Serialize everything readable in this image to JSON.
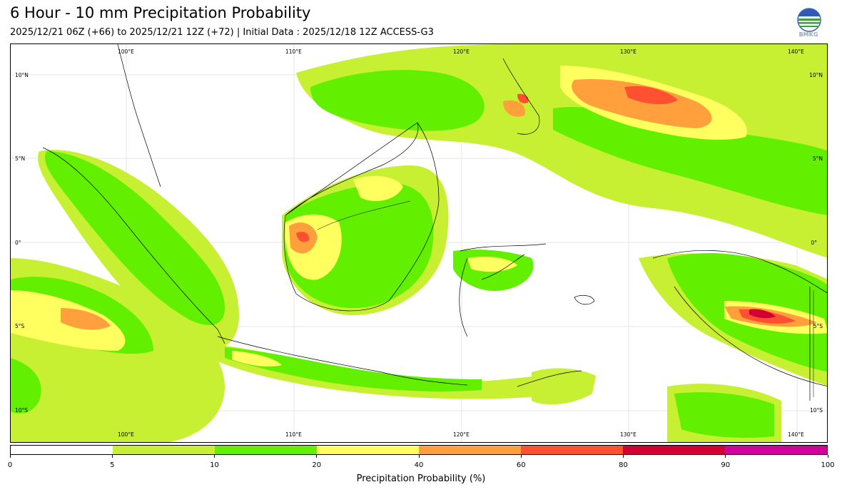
{
  "title": "6 Hour - 10 mm Precipitation Probability",
  "subtitle": "2025/12/21 06Z (+66) to 2025/12/21 12Z (+72) | Initial Data : 2025/12/18 12Z ACCESS-G3",
  "logo_text": "BMKG",
  "map": {
    "lon_labels_top": [
      "100°E",
      "110°E",
      "120°E",
      "130°E",
      "140°E"
    ],
    "lon_labels_bottom": [
      "100°E",
      "110°E",
      "120°E",
      "130°E",
      "140°E"
    ],
    "lat_labels_left": [
      "10°N",
      "5°N",
      "0°",
      "5°S",
      "10°S"
    ],
    "lat_labels_right": [
      "10°N",
      "5°N",
      "0°",
      "5°S",
      "10°S"
    ]
  },
  "colorbar": {
    "label": "Precipitation Probability (%)",
    "ticks": [
      "0",
      "5",
      "10",
      "20",
      "40",
      "60",
      "80",
      "90",
      "100"
    ],
    "colors": [
      "#ffffff",
      "#c7f032",
      "#62f000",
      "#ffff60",
      "#ffa03c",
      "#ff5032",
      "#d20032",
      "#d2009b"
    ]
  }
}
